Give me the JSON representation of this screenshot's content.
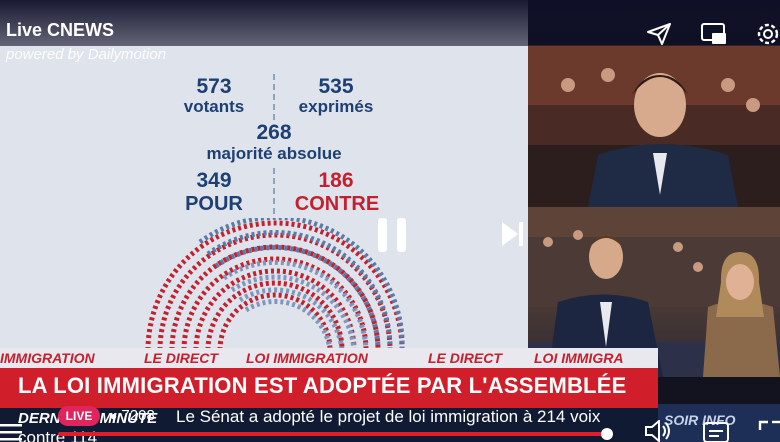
{
  "player": {
    "title": "Live CNEWS",
    "powered_by": "powered by Dailymotion",
    "live_label": "LIVE",
    "viewer_count": "7208",
    "progress": 0.95
  },
  "graphic": {
    "votants_value": "573",
    "votants_label": "votants",
    "exprimes_value": "535",
    "exprimes_label": "exprimés",
    "majorite_value": "268",
    "majorite_label": "majorité absolue",
    "pour_value": "349",
    "pour_label": "POUR",
    "contre_value": "186",
    "contre_label": "CONTRE"
  },
  "lower_third": {
    "band_items": [
      "IMMIGRATION",
      "LE DIRECT",
      "LOI IMMIGRATION",
      "LE DIRECT",
      "LOI IMMIGRA"
    ],
    "headline": "LA LOI IMMIGRATION EST ADOPTÉE PAR L'ASSEMBLÉE",
    "ticker_tag": "DERNIÈRE MINUTE",
    "ticker_text": "Le Sénat a adopté le projet de loi immigration à 214 voix",
    "ticker_text_2": "contre 114",
    "side_label": "SOIR INFO"
  },
  "colors": {
    "accent": "#e0245e",
    "pour": "#1e3f73",
    "contre": "#c4202e",
    "band_red": "#d01e2b"
  }
}
